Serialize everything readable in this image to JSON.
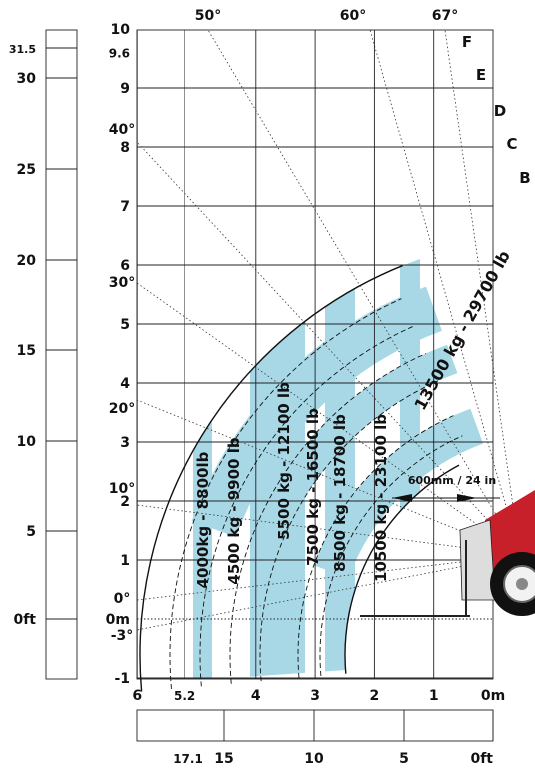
{
  "left_scale_ft": [
    "31.5",
    "30",
    "25",
    "20",
    "15",
    "10",
    "5",
    "0ft"
  ],
  "height_m": [
    "10",
    "9.6",
    "9",
    "8",
    "7",
    "6",
    "5",
    "4",
    "3",
    "2",
    "1",
    "0m",
    "-1"
  ],
  "bottom_m": [
    "6",
    "5.2",
    "4",
    "3",
    "2",
    "1",
    "0m"
  ],
  "bottom_ft": [
    "17.1",
    "15",
    "10",
    "5",
    "0ft"
  ],
  "angles_top": [
    "50°",
    "60°",
    "67°"
  ],
  "angles_left": [
    "40°",
    "30°",
    "20°",
    "10°",
    "0°",
    "-3°"
  ],
  "zone_letters": [
    "F",
    "E",
    "D",
    "C",
    "B"
  ],
  "loads": [
    "4000kg - 8800lb",
    "4500 kg - 9900 lb",
    "5500 kg - 12100 lb",
    "7500 kg - 16500 lb",
    "8500 kg - 18700 lb",
    "10500 kg - 23100 lb",
    "13500 kg - 29700 lb"
  ],
  "fork_offset": "600mm / 24 in",
  "colors": {
    "band": "#a8d8e6",
    "machine_red": "#c8202a",
    "grid": "#222222"
  }
}
